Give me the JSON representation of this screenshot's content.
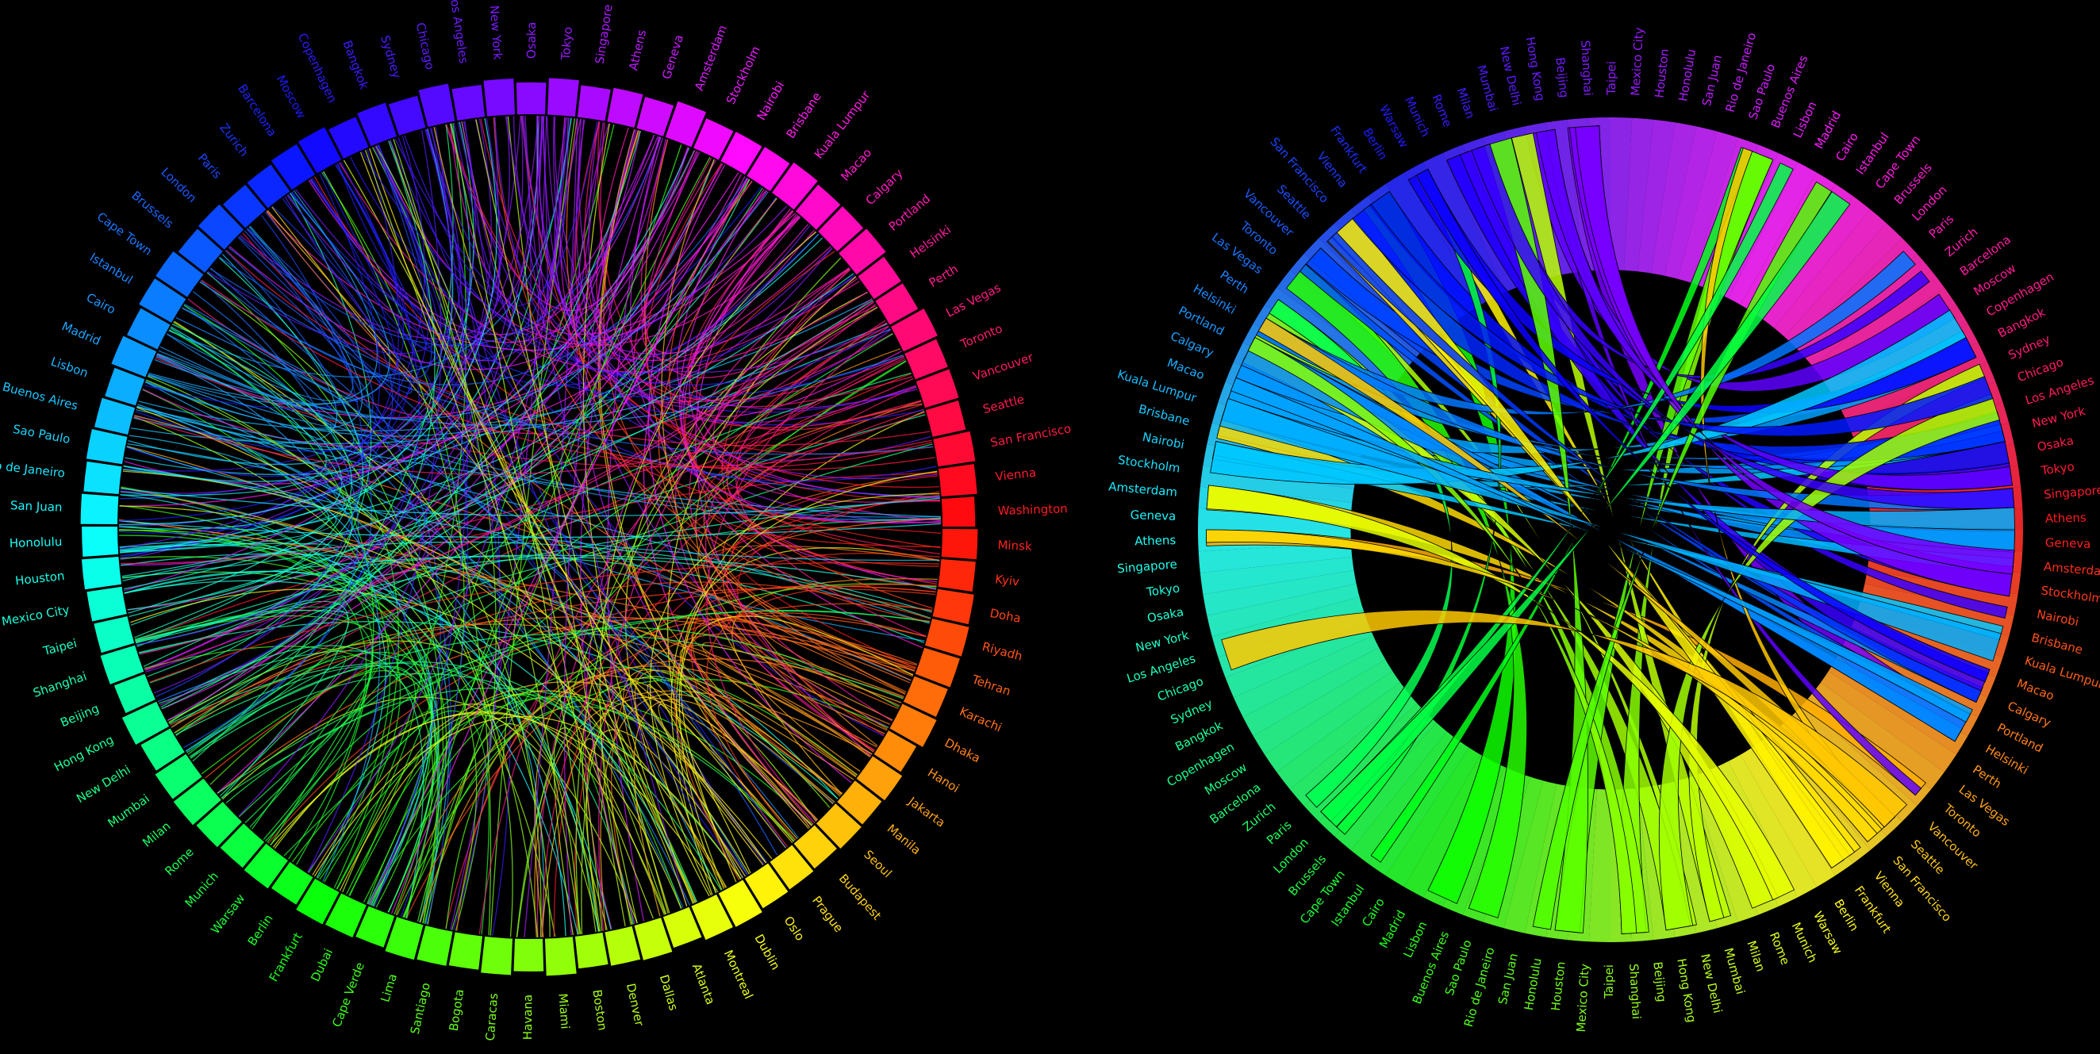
{
  "diagrams": [
    {
      "name": "left-chord-diagram",
      "style": "thin-lines",
      "cities": [
        "Washington",
        "Vienna",
        "San Francisco",
        "Seattle",
        "Vancouver",
        "Toronto",
        "Las Vegas",
        "Perth",
        "Helsinki",
        "Portland",
        "Calgary",
        "Macao",
        "Kuala Lumpur",
        "Brisbane",
        "Nairobi",
        "Stockholm",
        "Amsterdam",
        "Geneva",
        "Athens",
        "Singapore",
        "Tokyo",
        "Osaka",
        "New York",
        "Los Angeles",
        "Chicago",
        "Sydney",
        "Bangkok",
        "Copenhagen",
        "Moscow",
        "Barcelona",
        "Zurich",
        "Paris",
        "London",
        "Brussels",
        "Cape Town",
        "Istanbul",
        "Cairo",
        "Madrid",
        "Lisbon",
        "Buenos Aires",
        "Sao Paulo",
        "Rio de Janeiro",
        "San Juan",
        "Honolulu",
        "Houston",
        "Mexico City",
        "Taipei",
        "Shanghai",
        "Beijing",
        "Hong Kong",
        "New Delhi",
        "Mumbai",
        "Milan",
        "Rome",
        "Munich",
        "Warsaw",
        "Berlin",
        "Frankfurt",
        "Dubai",
        "Cape Verde",
        "Lima",
        "Santiago",
        "Bogota",
        "Caracas",
        "Havana",
        "Miami",
        "Boston",
        "Denver",
        "Dallas",
        "Atlanta",
        "Montreal",
        "Dublin",
        "Oslo",
        "Prague",
        "Budapest",
        "Seoul",
        "Manila",
        "Jakarta",
        "Hanoi",
        "Dhaka",
        "Karachi",
        "Tehran",
        "Riyadh",
        "Doha",
        "Kyiv",
        "Minsk"
      ]
    },
    {
      "name": "right-chord-diagram",
      "style": "ribbons",
      "cities": [
        "Athens",
        "Singapore",
        "Tokyo",
        "Osaka",
        "New York",
        "Los Angeles",
        "Chicago",
        "Sydney",
        "Bangkok",
        "Copenhagen",
        "Moscow",
        "Barcelona",
        "Zurich",
        "Paris",
        "London",
        "Brussels",
        "Cape Town",
        "Istanbul",
        "Cairo",
        "Madrid",
        "Lisbon",
        "Buenos Aires",
        "Sao Paulo",
        "Rio de Janeiro",
        "San Juan",
        "Honolulu",
        "Houston",
        "Mexico City",
        "Taipei",
        "Shanghai",
        "Beijing",
        "Hong Kong",
        "New Delhi",
        "Mumbai",
        "Milan",
        "Rome",
        "Munich",
        "Warsaw",
        "Berlin",
        "Frankfurt",
        "Vienna",
        "San Francisco",
        "Seattle",
        "Vancouver",
        "Toronto",
        "Las Vegas",
        "Perth",
        "Helsinki",
        "Portland",
        "Calgary",
        "Macao",
        "Kuala Lumpur",
        "Brisbane",
        "Nairobi",
        "Stockholm",
        "Amsterdam",
        "Geneva",
        "Athens",
        "Singapore",
        "Tokyo",
        "Osaka",
        "New York",
        "Los Angeles",
        "Chicago",
        "Sydney",
        "Bangkok",
        "Copenhagen",
        "Moscow",
        "Barcelona",
        "Zurich",
        "Paris",
        "London",
        "Brussels",
        "Cape Town",
        "Istanbul",
        "Cairo",
        "Madrid",
        "Lisbon",
        "Buenos Aires",
        "Sao Paulo",
        "Rio de Janeiro",
        "San Juan",
        "Honolulu",
        "Houston",
        "Mexico City",
        "Taipei",
        "Shanghai",
        "Beijing",
        "Hong Kong",
        "New Delhi",
        "Mumbai",
        "Milan",
        "Rome",
        "Munich",
        "Warsaw",
        "Berlin",
        "Frankfurt",
        "Vienna",
        "San Francisco",
        "Seattle",
        "Vancouver",
        "Toronto",
        "Las Vegas",
        "Perth",
        "Helsinki",
        "Portland",
        "Calgary",
        "Macao",
        "Kuala Lumpur",
        "Brisbane",
        "Nairobi",
        "Stockholm",
        "Amsterdam",
        "Geneva"
      ]
    }
  ]
}
